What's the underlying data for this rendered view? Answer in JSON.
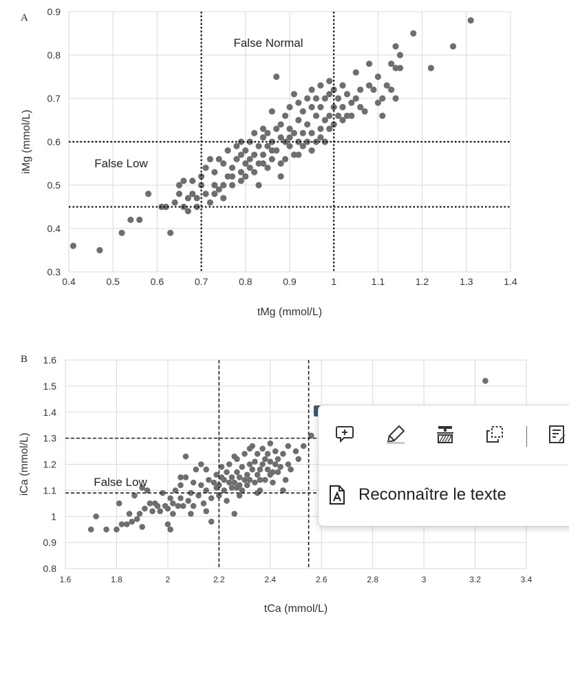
{
  "chart_data": [
    {
      "type": "scatter",
      "panel_label": "A",
      "xlabel": "tMg (mmol/L)",
      "ylabel": "iMg (mmol/L)",
      "xlim": [
        0.4,
        1.4
      ],
      "ylim": [
        0.3,
        0.9
      ],
      "x_ticks": [
        "0.4",
        "0.5",
        "0.6",
        "0.7",
        "0.8",
        "0.9",
        "1",
        "1.1",
        "1.2",
        "1.3",
        "1.4"
      ],
      "y_ticks": [
        "0.3",
        "0.4",
        "0.5",
        "0.6",
        "0.7",
        "0.8",
        "0.9"
      ],
      "grid": true,
      "annotations": [
        "False Normal",
        "False Low"
      ],
      "threshold_lines": {
        "x": [
          0.7,
          1.0
        ],
        "y": [
          0.45,
          0.6
        ]
      },
      "points": [
        [
          0.41,
          0.36
        ],
        [
          0.47,
          0.35
        ],
        [
          0.52,
          0.39
        ],
        [
          0.54,
          0.42
        ],
        [
          0.56,
          0.42
        ],
        [
          0.58,
          0.48
        ],
        [
          0.61,
          0.45
        ],
        [
          0.62,
          0.45
        ],
        [
          0.63,
          0.39
        ],
        [
          0.64,
          0.46
        ],
        [
          0.65,
          0.48
        ],
        [
          0.65,
          0.5
        ],
        [
          0.66,
          0.45
        ],
        [
          0.66,
          0.51
        ],
        [
          0.67,
          0.44
        ],
        [
          0.67,
          0.47
        ],
        [
          0.68,
          0.51
        ],
        [
          0.68,
          0.48
        ],
        [
          0.69,
          0.47
        ],
        [
          0.69,
          0.45
        ],
        [
          0.7,
          0.5
        ],
        [
          0.7,
          0.52
        ],
        [
          0.71,
          0.48
        ],
        [
          0.71,
          0.54
        ],
        [
          0.72,
          0.46
        ],
        [
          0.72,
          0.56
        ],
        [
          0.73,
          0.5
        ],
        [
          0.73,
          0.53
        ],
        [
          0.74,
          0.49
        ],
        [
          0.74,
          0.56
        ],
        [
          0.75,
          0.5
        ],
        [
          0.75,
          0.55
        ],
        [
          0.76,
          0.52
        ],
        [
          0.76,
          0.58
        ],
        [
          0.77,
          0.5
        ],
        [
          0.77,
          0.54
        ],
        [
          0.78,
          0.56
        ],
        [
          0.78,
          0.59
        ],
        [
          0.79,
          0.53
        ],
        [
          0.79,
          0.57
        ],
        [
          0.79,
          0.6
        ],
        [
          0.8,
          0.52
        ],
        [
          0.8,
          0.55
        ],
        [
          0.8,
          0.58
        ],
        [
          0.81,
          0.56
        ],
        [
          0.81,
          0.6
        ],
        [
          0.82,
          0.53
        ],
        [
          0.82,
          0.57
        ],
        [
          0.82,
          0.62
        ],
        [
          0.83,
          0.5
        ],
        [
          0.83,
          0.55
        ],
        [
          0.83,
          0.59
        ],
        [
          0.84,
          0.57
        ],
        [
          0.84,
          0.61
        ],
        [
          0.84,
          0.63
        ],
        [
          0.85,
          0.54
        ],
        [
          0.85,
          0.59
        ],
        [
          0.85,
          0.62
        ],
        [
          0.86,
          0.56
        ],
        [
          0.86,
          0.6
        ],
        [
          0.86,
          0.67
        ],
        [
          0.87,
          0.58
        ],
        [
          0.87,
          0.63
        ],
        [
          0.87,
          0.75
        ],
        [
          0.88,
          0.52
        ],
        [
          0.88,
          0.55
        ],
        [
          0.88,
          0.61
        ],
        [
          0.88,
          0.64
        ],
        [
          0.89,
          0.6
        ],
        [
          0.89,
          0.66
        ],
        [
          0.9,
          0.59
        ],
        [
          0.9,
          0.63
        ],
        [
          0.9,
          0.68
        ],
        [
          0.91,
          0.57
        ],
        [
          0.91,
          0.62
        ],
        [
          0.91,
          0.71
        ],
        [
          0.92,
          0.6
        ],
        [
          0.92,
          0.65
        ],
        [
          0.92,
          0.69
        ],
        [
          0.93,
          0.62
        ],
        [
          0.93,
          0.67
        ],
        [
          0.94,
          0.6
        ],
        [
          0.94,
          0.64
        ],
        [
          0.94,
          0.7
        ],
        [
          0.95,
          0.62
        ],
        [
          0.95,
          0.68
        ],
        [
          0.95,
          0.72
        ],
        [
          0.96,
          0.6
        ],
        [
          0.96,
          0.66
        ],
        [
          0.96,
          0.7
        ],
        [
          0.97,
          0.63
        ],
        [
          0.97,
          0.68
        ],
        [
          0.97,
          0.73
        ],
        [
          0.98,
          0.65
        ],
        [
          0.98,
          0.7
        ],
        [
          0.99,
          0.66
        ],
        [
          0.99,
          0.71
        ],
        [
          0.99,
          0.74
        ],
        [
          1.0,
          0.64
        ],
        [
          1.0,
          0.68
        ],
        [
          1.0,
          0.72
        ],
        [
          1.01,
          0.66
        ],
        [
          1.01,
          0.7
        ],
        [
          1.02,
          0.68
        ],
        [
          1.02,
          0.73
        ],
        [
          1.03,
          0.66
        ],
        [
          1.03,
          0.71
        ],
        [
          1.04,
          0.69
        ],
        [
          1.05,
          0.76
        ],
        [
          1.05,
          0.7
        ],
        [
          1.06,
          0.72
        ],
        [
          1.07,
          0.67
        ],
        [
          1.08,
          0.73
        ],
        [
          1.08,
          0.78
        ],
        [
          1.09,
          0.72
        ],
        [
          1.1,
          0.69
        ],
        [
          1.1,
          0.75
        ],
        [
          1.11,
          0.66
        ],
        [
          1.11,
          0.7
        ],
        [
          1.12,
          0.73
        ],
        [
          1.13,
          0.72
        ],
        [
          1.13,
          0.78
        ],
        [
          1.14,
          0.7
        ],
        [
          1.14,
          0.77
        ],
        [
          1.14,
          0.82
        ],
        [
          1.15,
          0.8
        ],
        [
          1.15,
          0.77
        ],
        [
          1.18,
          0.85
        ],
        [
          1.22,
          0.77
        ],
        [
          1.27,
          0.82
        ],
        [
          1.31,
          0.88
        ],
        [
          0.9,
          0.61
        ],
        [
          0.93,
          0.59
        ],
        [
          0.95,
          0.58
        ],
        [
          0.97,
          0.61
        ],
        [
          0.99,
          0.63
        ],
        [
          0.86,
          0.58
        ],
        [
          0.84,
          0.55
        ],
        [
          0.81,
          0.54
        ],
        [
          0.79,
          0.51
        ],
        [
          0.77,
          0.52
        ],
        [
          0.75,
          0.47
        ],
        [
          0.73,
          0.48
        ],
        [
          0.98,
          0.6
        ],
        [
          1.02,
          0.65
        ],
        [
          1.04,
          0.66
        ],
        [
          1.06,
          0.68
        ],
        [
          0.92,
          0.57
        ],
        [
          0.89,
          0.56
        ]
      ]
    },
    {
      "type": "scatter",
      "panel_label": "B",
      "xlabel": "tCa (mmol/L)",
      "ylabel": "iCa (mmol/L)",
      "xlim": [
        1.6,
        3.4
      ],
      "ylim": [
        0.8,
        1.6
      ],
      "x_ticks": [
        "1.6",
        "1.8",
        "2",
        "2.2",
        "2.4",
        "2.6",
        "2.8",
        "3",
        "3.2",
        "3.4"
      ],
      "y_ticks": [
        "0.8",
        "0.9",
        "1",
        "1.1",
        "1.2",
        "1.3",
        "1.4",
        "1.5",
        "1.6"
      ],
      "grid": true,
      "annotations": [
        "False Low"
      ],
      "threshold_lines": {
        "x": [
          2.2,
          2.55
        ],
        "y": [
          1.09,
          1.3
        ]
      },
      "points": [
        [
          1.7,
          0.95
        ],
        [
          1.72,
          1.0
        ],
        [
          1.76,
          0.95
        ],
        [
          1.8,
          0.95
        ],
        [
          1.81,
          1.05
        ],
        [
          1.82,
          0.97
        ],
        [
          1.84,
          0.97
        ],
        [
          1.85,
          1.01
        ],
        [
          1.86,
          0.98
        ],
        [
          1.87,
          1.08
        ],
        [
          1.88,
          0.99
        ],
        [
          1.89,
          1.01
        ],
        [
          1.9,
          1.11
        ],
        [
          1.9,
          0.96
        ],
        [
          1.91,
          1.03
        ],
        [
          1.92,
          1.1
        ],
        [
          1.93,
          1.05
        ],
        [
          1.94,
          1.02
        ],
        [
          1.95,
          1.05
        ],
        [
          1.96,
          1.04
        ],
        [
          1.97,
          1.02
        ],
        [
          1.98,
          1.09
        ],
        [
          1.99,
          1.04
        ],
        [
          2.0,
          0.97
        ],
        [
          2.0,
          1.03
        ],
        [
          2.01,
          0.95
        ],
        [
          2.01,
          1.07
        ],
        [
          2.02,
          1.05
        ],
        [
          2.03,
          1.1
        ],
        [
          2.04,
          1.04
        ],
        [
          2.05,
          1.12
        ],
        [
          2.05,
          1.07
        ],
        [
          2.06,
          1.04
        ],
        [
          2.07,
          1.23
        ],
        [
          2.07,
          1.15
        ],
        [
          2.08,
          1.06
        ],
        [
          2.09,
          1.09
        ],
        [
          2.1,
          1.13
        ],
        [
          2.1,
          1.04
        ],
        [
          2.11,
          1.18
        ],
        [
          2.12,
          1.08
        ],
        [
          2.13,
          1.12
        ],
        [
          2.14,
          1.05
        ],
        [
          2.15,
          1.1
        ],
        [
          2.15,
          1.18
        ],
        [
          2.16,
          1.14
        ],
        [
          2.17,
          1.07
        ],
        [
          2.17,
          0.98
        ],
        [
          2.18,
          1.13
        ],
        [
          2.19,
          1.11
        ],
        [
          2.19,
          1.16
        ],
        [
          2.2,
          1.08
        ],
        [
          2.2,
          1.12
        ],
        [
          2.21,
          1.15
        ],
        [
          2.21,
          1.19
        ],
        [
          2.22,
          1.1
        ],
        [
          2.22,
          1.14
        ],
        [
          2.23,
          1.17
        ],
        [
          2.23,
          1.06
        ],
        [
          2.24,
          1.13
        ],
        [
          2.24,
          1.2
        ],
        [
          2.25,
          1.11
        ],
        [
          2.25,
          1.15
        ],
        [
          2.26,
          1.01
        ],
        [
          2.26,
          1.13
        ],
        [
          2.27,
          1.17
        ],
        [
          2.27,
          1.22
        ],
        [
          2.28,
          1.12
        ],
        [
          2.28,
          1.15
        ],
        [
          2.29,
          1.1
        ],
        [
          2.29,
          1.19
        ],
        [
          2.3,
          1.14
        ],
        [
          2.3,
          1.24
        ],
        [
          2.31,
          1.16
        ],
        [
          2.31,
          1.12
        ],
        [
          2.32,
          1.2
        ],
        [
          2.32,
          1.14
        ],
        [
          2.33,
          1.18
        ],
        [
          2.33,
          1.27
        ],
        [
          2.34,
          1.13
        ],
        [
          2.34,
          1.21
        ],
        [
          2.35,
          1.16
        ],
        [
          2.35,
          1.24
        ],
        [
          2.36,
          1.18
        ],
        [
          2.36,
          1.1
        ],
        [
          2.37,
          1.2
        ],
        [
          2.37,
          1.26
        ],
        [
          2.38,
          1.14
        ],
        [
          2.38,
          1.22
        ],
        [
          2.39,
          1.18
        ],
        [
          2.39,
          1.24
        ],
        [
          2.4,
          1.16
        ],
        [
          2.4,
          1.21
        ],
        [
          2.4,
          1.28
        ],
        [
          2.41,
          1.13
        ],
        [
          2.42,
          1.2
        ],
        [
          2.42,
          1.25
        ],
        [
          2.43,
          1.17
        ],
        [
          2.43,
          1.22
        ],
        [
          2.44,
          1.19
        ],
        [
          2.45,
          1.24
        ],
        [
          2.46,
          1.14
        ],
        [
          2.47,
          1.2
        ],
        [
          2.48,
          1.18
        ],
        [
          2.5,
          1.25
        ],
        [
          2.51,
          1.22
        ],
        [
          2.53,
          1.27
        ],
        [
          2.56,
          1.31
        ],
        [
          2.45,
          1.1
        ],
        [
          2.35,
          1.09
        ],
        [
          2.28,
          1.08
        ],
        [
          2.13,
          1.2
        ],
        [
          2.05,
          1.15
        ],
        [
          3.24,
          1.52
        ],
        [
          2.32,
          1.26
        ],
        [
          2.26,
          1.23
        ],
        [
          2.47,
          1.27
        ],
        [
          2.15,
          1.02
        ],
        [
          2.02,
          1.01
        ],
        [
          2.09,
          1.01
        ],
        [
          2.36,
          1.14
        ],
        [
          2.41,
          1.17
        ],
        [
          2.27,
          1.11
        ]
      ]
    }
  ],
  "popup": {
    "recognize_label": "Reconnaître le texte",
    "buttons": [
      "add-comment-icon",
      "highlighter-icon",
      "strikethrough-icon",
      "select-region-icon",
      "edit-text-icon"
    ],
    "accent_color": "#3c5a78"
  }
}
